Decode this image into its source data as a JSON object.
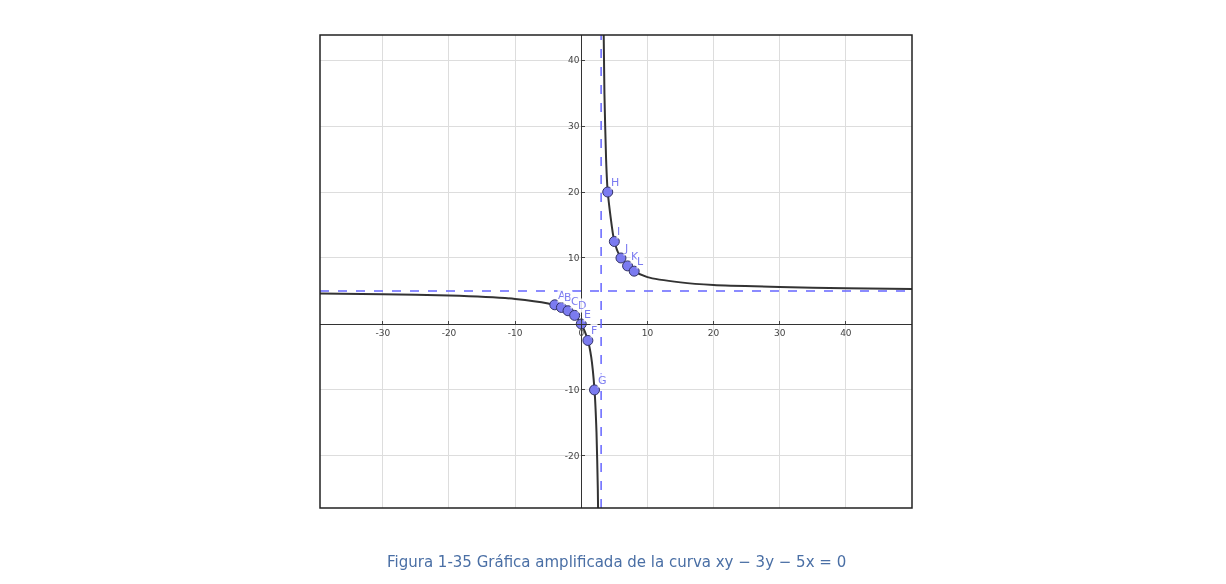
{
  "chart_data": {
    "type": "line",
    "xlim": [
      -39.5,
      50
    ],
    "ylim": [
      -27.9,
      43.8
    ],
    "xticks": [
      -30,
      -20,
      -10,
      0,
      10,
      20,
      30,
      40
    ],
    "yticks": [
      -20,
      -10,
      10,
      20,
      30,
      40
    ],
    "grid": true,
    "marker": "circle",
    "series": [
      {
        "color": "#333333",
        "marker": "none",
        "x": [
          -39.5,
          -30,
          -20,
          -10,
          -5,
          -3,
          -2,
          -1,
          0,
          1,
          1.5,
          2,
          2.3,
          2.5,
          2.54
        ],
        "values": [
          4.6,
          4.5,
          4.3,
          3.8,
          3.1,
          2.5,
          2,
          1.3,
          0,
          -2.5,
          -5,
          -10,
          -16.4,
          -25,
          -27.9
        ]
      },
      {
        "color": "#333333",
        "marker": "none",
        "x": [
          3.39,
          3.5,
          3.75,
          4,
          5,
          6,
          8,
          10,
          15,
          20,
          30,
          40,
          50
        ],
        "values": [
          43.8,
          35,
          25,
          20,
          12.5,
          10,
          8,
          7.1,
          6.3,
          5.9,
          5.6,
          5.4,
          5.3
        ]
      },
      {
        "type": "scatter",
        "color": "#7b7bf0",
        "x": [
          -4,
          -3,
          -2,
          -1,
          0,
          1,
          2,
          4,
          5,
          6,
          7,
          8
        ],
        "values": [
          2.9,
          2.5,
          2,
          1.3,
          0,
          -2.5,
          -10,
          20,
          12.5,
          10,
          8.8,
          8
        ]
      }
    ],
    "ref_lines": [
      {
        "axis": "x",
        "value": 3,
        "color": "#6666ff",
        "line_style": "dashed"
      },
      {
        "axis": "y",
        "value": 5,
        "color": "#6666ff",
        "line_style": "dashed"
      }
    ],
    "annotations": [
      {
        "text": "A",
        "x": -4,
        "y": 2.9
      },
      {
        "text": "B",
        "x": -3,
        "y": 2.5
      },
      {
        "text": "C",
        "x": -2,
        "y": 2
      },
      {
        "text": "D",
        "x": -1,
        "y": 1.3
      },
      {
        "text": "E",
        "x": 0,
        "y": 0
      },
      {
        "text": "F",
        "x": 1,
        "y": -2.5
      },
      {
        "text": "G",
        "x": 2,
        "y": -10
      },
      {
        "text": "H",
        "x": 4,
        "y": 20
      },
      {
        "text": "I",
        "x": 5,
        "y": 12.5
      },
      {
        "text": "J",
        "x": 6,
        "y": 10
      },
      {
        "text": "K",
        "x": 7,
        "y": 8.8
      },
      {
        "text": "L",
        "x": 8,
        "y": 8
      },
      "Figura 1-35 Gráfica amplificada de la curva xy − 3y − 5x = 0"
    ]
  }
}
